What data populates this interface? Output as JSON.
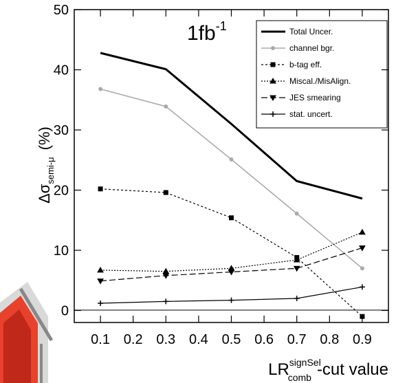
{
  "chart_data": {
    "type": "line",
    "ylabel": {
      "main": "Δσ",
      "sub": "semi-μ",
      "unit": "(%)"
    },
    "xlabel": {
      "main": "LR",
      "sup": "signSel",
      "sub": "comb",
      "rest": "-cut value"
    },
    "annotation": {
      "main": "1fb",
      "sup": "-1"
    },
    "x": [
      0.1,
      0.3,
      0.5,
      0.7,
      0.9
    ],
    "series": [
      {
        "name": "Total Uncer.",
        "color": "#000000",
        "width": 3,
        "dash": "none",
        "marker": "none",
        "values": [
          42.8,
          40.1,
          31,
          21.5,
          18.6
        ]
      },
      {
        "name": "channel bgr.",
        "color": "#aaaaaa",
        "width": 1.6,
        "dash": "none",
        "marker": "circle",
        "values": [
          36.8,
          33.9,
          25.1,
          16.1,
          7.0
        ]
      },
      {
        "name": "b-tag eff.",
        "color": "#000000",
        "width": 1.2,
        "dash": "3,3",
        "marker": "square",
        "values": [
          20.2,
          19.6,
          15.4,
          8.8,
          -1.0
        ]
      },
      {
        "name": "Miscal./MisAlign.",
        "color": "#000000",
        "width": 1.2,
        "dash": "2,2",
        "marker": "triangle",
        "values": [
          6.7,
          6.5,
          7.0,
          8.4,
          13.0
        ]
      },
      {
        "name": "JES smearing",
        "color": "#000000",
        "width": 1.2,
        "dash": "9,4",
        "marker": "triangle-down",
        "values": [
          4.9,
          5.8,
          6.4,
          7.0,
          10.4
        ]
      },
      {
        "name": "stat. uncert.",
        "color": "#000000",
        "width": 1.2,
        "dash": "none",
        "marker": "plus",
        "values": [
          1.2,
          1.5,
          1.7,
          2.0,
          3.9
        ]
      }
    ],
    "xlim": [
      0.02,
      0.98
    ],
    "ylim": [
      -2,
      50
    ],
    "xticks": [
      0.1,
      0.2,
      0.3,
      0.4,
      0.5,
      0.6,
      0.7,
      0.8,
      0.9
    ],
    "yticks": [
      0,
      10,
      20,
      30,
      40,
      50
    ],
    "legend": "upper right"
  }
}
